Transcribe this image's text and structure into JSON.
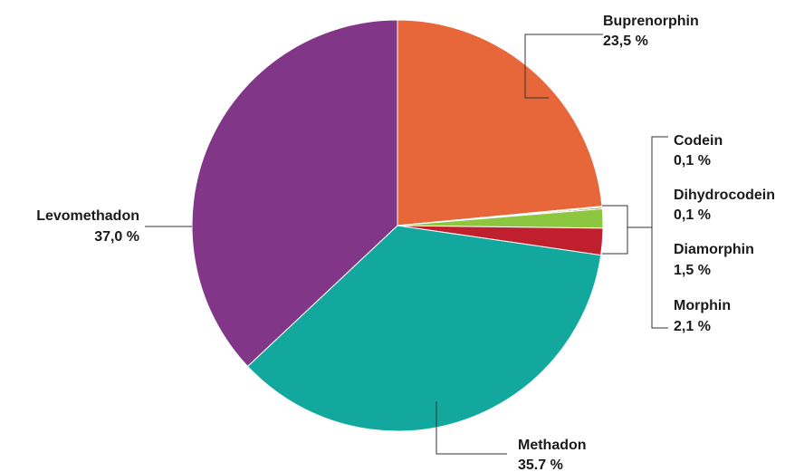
{
  "chart_data": {
    "type": "pie",
    "title": "",
    "slices": [
      {
        "name": "Buprenorphin",
        "label": "Buprenorphin",
        "value_label": "23,5 %",
        "value": 23.5,
        "color": "#E8673A"
      },
      {
        "name": "Codein",
        "label": "Codein",
        "value_label": "0,1 %",
        "value": 0.1,
        "color": "#F2C12E"
      },
      {
        "name": "Dihydrocodein",
        "label": "Dihydrocodein",
        "value_label": "0,1 %",
        "value": 0.1,
        "color": "#2E3A1F"
      },
      {
        "name": "Diamorphin",
        "label": "Diamorphin",
        "value_label": "1,5 %",
        "value": 1.5,
        "color": "#8DC63F"
      },
      {
        "name": "Morphin",
        "label": "Morphin",
        "value_label": "2,1 %",
        "value": 2.1,
        "color": "#C0202E"
      },
      {
        "name": "Methadon",
        "label": "Methadon",
        "value_label": "35.7 %",
        "value": 35.7,
        "color": "#13A89E"
      },
      {
        "name": "Levomethadon",
        "label": "Levomethadon",
        "value_label": "37,0 %",
        "value": 37.0,
        "color": "#823688"
      }
    ]
  }
}
